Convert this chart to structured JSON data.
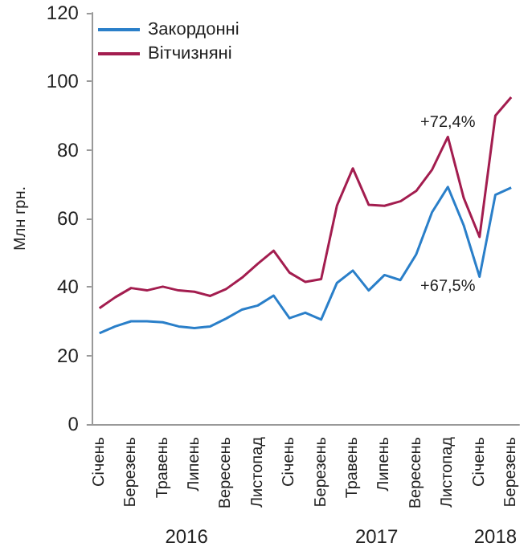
{
  "chart_data": {
    "type": "line",
    "ylabel": "Млн грн.",
    "categories": [
      "Січень",
      null,
      "Березень",
      null,
      "Травень",
      null,
      "Липень",
      null,
      "Вересень",
      null,
      "Листопад",
      null,
      "Січень",
      null,
      "Березень",
      null,
      "Травень",
      null,
      "Липень",
      null,
      "Вересень",
      null,
      "Листопад",
      null,
      "Січень",
      null,
      "Березень"
    ],
    "series": [
      {
        "name": "Закордонні",
        "color": "#2a7fc9",
        "values": [
          26.5,
          28.5,
          30,
          30,
          29.7,
          28.5,
          28,
          28.5,
          30.8,
          33.4,
          34.6,
          37.5,
          30.9,
          32.5,
          30.5,
          41.2,
          44.8,
          39,
          43.5,
          42,
          49.5,
          61.8,
          69.2,
          58,
          43,
          66.9,
          69
        ]
      },
      {
        "name": "Вітчизняні",
        "color": "#a31d4f",
        "values": [
          33.8,
          37,
          39.7,
          39,
          40.1,
          39,
          38.6,
          37.4,
          39.4,
          42.7,
          46.8,
          50.6,
          44.2,
          41.5,
          42.3,
          63.8,
          74.6,
          64,
          63.7,
          65,
          68,
          74.2,
          83.8,
          66,
          54.6,
          90,
          95.4
        ]
      }
    ],
    "ylim": [
      0,
      120
    ],
    "yticks": [
      0,
      20,
      40,
      60,
      80,
      100,
      120
    ],
    "grid": false,
    "legend": "top left",
    "marker": "none",
    "line_style": "solid",
    "annotations": [
      "+72,4%",
      "+67,5%",
      "2016",
      "2017",
      "2018"
    ]
  }
}
